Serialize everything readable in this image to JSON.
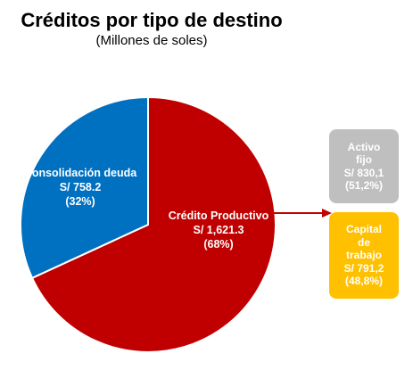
{
  "header": {
    "title": "Créditos por tipo de destino",
    "subtitle": "(Millones de soles)"
  },
  "chart_data": {
    "type": "pie",
    "title": "Créditos por tipo de destino",
    "subtitle": "(Millones de soles)",
    "slices": [
      {
        "name": "Crédito Productivo",
        "value": 1621.3,
        "percent": 68,
        "value_label": "S/  1,621.3",
        "percent_label": "(68%)",
        "color": "#C00000"
      },
      {
        "name": "Consolidación deuda",
        "value": 758.2,
        "percent": 32,
        "value_label": "S/ 758.2",
        "percent_label": "(32%)",
        "color": "#0070C0"
      }
    ],
    "breakdown": [
      {
        "name_lines": [
          "Activo",
          "fijo"
        ],
        "value": 830.1,
        "percent": 51.2,
        "value_label": "S/ 830,1",
        "percent_label": "(51,2%)",
        "color": "#BFBFBF"
      },
      {
        "name_lines": [
          "Capital",
          "de",
          "trabajo"
        ],
        "value": 791.2,
        "percent": 48.8,
        "value_label": "S/ 791,2",
        "percent_label": "(48,8%)",
        "color": "#FFC000"
      }
    ],
    "arrow_color": "#C00000"
  }
}
